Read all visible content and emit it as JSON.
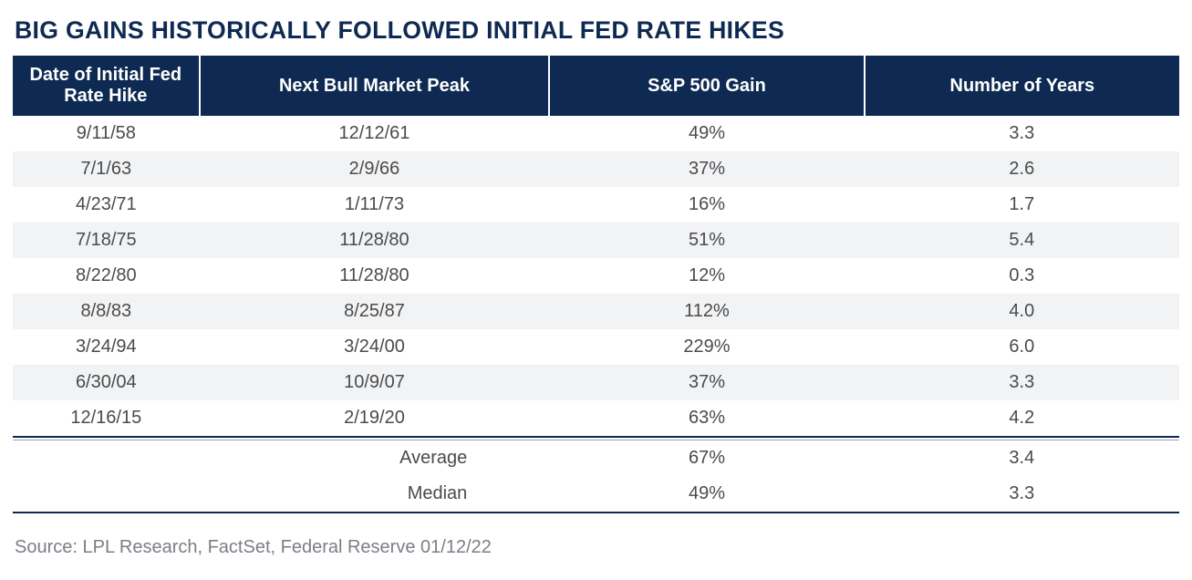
{
  "title": {
    "text": "BIG GAINS HISTORICALLY FOLLOWED INITIAL FED RATE HIKES",
    "color": "#0f2a52",
    "font_size_pt": 20
  },
  "table": {
    "header_bg": "#0f2a52",
    "header_text_color": "#ffffff",
    "header_font_size_pt": 15,
    "body_font_size_pt": 15,
    "body_text_color": "#4b4b4b",
    "row_bg_even": "#ffffff",
    "row_bg_odd": "#f2f3f5",
    "separator_color": "#0f2a52",
    "separator_color_light": "#9aa6b8",
    "col_widths_pct": [
      16,
      30,
      27,
      27
    ],
    "columns": [
      "Date of Initial Fed Rate Hike",
      "Next Bull Market Peak",
      "S&P 500 Gain",
      "Number of Years"
    ],
    "rows": [
      [
        "9/11/58",
        "12/12/61",
        "49%",
        "3.3"
      ],
      [
        "7/1/63",
        "2/9/66",
        "37%",
        "2.6"
      ],
      [
        "4/23/71",
        "1/11/73",
        "16%",
        "1.7"
      ],
      [
        "7/18/75",
        "11/28/80",
        "51%",
        "5.4"
      ],
      [
        "8/22/80",
        "11/28/80",
        "12%",
        "0.3"
      ],
      [
        "8/8/83",
        "8/25/87",
        "112%",
        "4.0"
      ],
      [
        "3/24/94",
        "3/24/00",
        "229%",
        "6.0"
      ],
      [
        "6/30/04",
        "10/9/07",
        "37%",
        "3.3"
      ],
      [
        "12/16/15",
        "2/19/20",
        "63%",
        "4.2"
      ]
    ],
    "summary": [
      {
        "label": "Average",
        "gain": "67%",
        "years": "3.4"
      },
      {
        "label": "Median",
        "gain": "49%",
        "years": "3.3"
      }
    ]
  },
  "source": {
    "text": "Source: LPL Research, FactSet, Federal Reserve   01/12/22",
    "color": "#7a7f87",
    "font_size_pt": 15
  }
}
